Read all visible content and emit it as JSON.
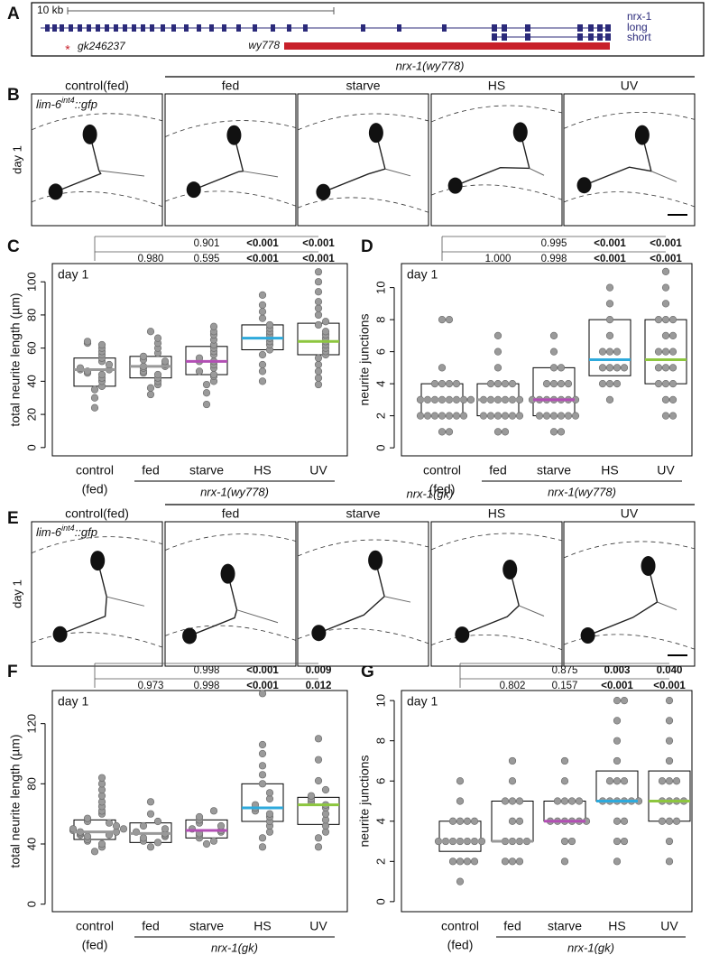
{
  "panel_labels": [
    "A",
    "B",
    "C",
    "D",
    "E",
    "F",
    "G"
  ],
  "gene_diagram": {
    "scale_label": "10 kb",
    "gene": "nrx-1",
    "isoforms": [
      "long",
      "short"
    ],
    "mutation_marker": "*",
    "alleles": [
      "gk246237",
      "wy778"
    ]
  },
  "image_rows": [
    {
      "group_label": "nrx-1(wy778)",
      "columns": [
        "control(fed)",
        "fed",
        "starve",
        "HS",
        "UV"
      ],
      "row_label": "day 1",
      "reporter": {
        "base": "lim-6",
        "superscript": "int4",
        "suffix": "::gfp"
      }
    },
    {
      "group_label": "nrx-1(gk)",
      "columns": [
        "control(fed)",
        "fed",
        "starve",
        "HS",
        "UV"
      ],
      "row_label": "day 1",
      "reporter": {
        "base": "lim-6",
        "superscript": "int4",
        "suffix": "::gfp"
      }
    }
  ],
  "chart_data": [
    {
      "type": "box",
      "title": "day 1",
      "y_label": "total neurite length (µm)",
      "categories": [
        "control",
        "fed",
        "starve",
        "HS",
        "UV"
      ],
      "category_note": "(fed)",
      "group_label": "nrx-1(wy778)",
      "ylim": [
        -5,
        111
      ],
      "yticks": [
        0,
        20,
        40,
        60,
        80,
        100
      ],
      "q1": [
        37,
        42,
        44,
        59,
        56
      ],
      "median": [
        47,
        49,
        52,
        66,
        64
      ],
      "q3": [
        54,
        55,
        61,
        74,
        75
      ],
      "median_colors": [
        "#999999",
        "#999999",
        "#b24fb4",
        "#2eaadc",
        "#8dc63f"
      ],
      "point_color": "#9a9a9a",
      "points": [
        [
          24,
          30,
          35,
          37,
          40,
          42,
          44,
          45,
          46,
          47,
          47,
          48,
          50,
          52,
          54,
          56,
          58,
          60,
          62,
          63,
          64
        ],
        [
          32,
          36,
          38,
          40,
          42,
          44,
          45,
          46,
          48,
          49,
          49,
          50,
          52,
          53,
          55,
          57,
          60,
          63,
          66,
          70
        ],
        [
          26,
          33,
          38,
          40,
          43,
          44,
          46,
          48,
          50,
          52,
          52,
          54,
          56,
          58,
          60,
          62,
          65,
          68,
          70,
          73
        ],
        [
          40,
          46,
          50,
          56,
          59,
          62,
          64,
          66,
          68,
          70,
          72,
          74,
          78,
          82,
          86,
          92
        ],
        [
          38,
          42,
          46,
          50,
          54,
          56,
          58,
          60,
          62,
          64,
          66,
          68,
          70,
          74,
          76,
          80,
          84,
          88,
          94,
          100,
          106
        ]
      ],
      "p_values": [
        {
          "labels": [
            "0.901",
            "<0.001",
            "<0.001"
          ],
          "bold": [
            false,
            true,
            true
          ]
        },
        {
          "labels": [
            "0.980",
            "0.595",
            "<0.001",
            "<0.001"
          ],
          "bold": [
            false,
            false,
            true,
            true
          ]
        }
      ]
    },
    {
      "type": "box",
      "title": "day 1",
      "y_label": "neurite junctions",
      "categories": [
        "control",
        "fed",
        "starve",
        "HS",
        "UV"
      ],
      "category_note": "(fed)",
      "group_label": "nrx-1(wy778)",
      "ylim": [
        -0.5,
        11.5
      ],
      "yticks": [
        0,
        2,
        4,
        6,
        8,
        10
      ],
      "q1": [
        2,
        2,
        2,
        4.5,
        4
      ],
      "median": [
        3,
        3,
        3,
        5.5,
        5.5
      ],
      "q3": [
        4,
        4,
        5,
        8,
        8
      ],
      "median_colors": [
        "#999999",
        "#999999",
        "#b24fb4",
        "#2eaadc",
        "#8dc63f"
      ],
      "point_color": "#9a9a9a",
      "points": [
        [
          1,
          1,
          2,
          2,
          2,
          2,
          2,
          2,
          2,
          3,
          3,
          3,
          3,
          3,
          3,
          3,
          3,
          4,
          4,
          4,
          4,
          5,
          8,
          8
        ],
        [
          1,
          1,
          2,
          2,
          2,
          2,
          2,
          2,
          3,
          3,
          3,
          3,
          3,
          3,
          4,
          4,
          4,
          4,
          5,
          6,
          7
        ],
        [
          1,
          1,
          2,
          2,
          2,
          2,
          2,
          2,
          3,
          3,
          3,
          3,
          3,
          3,
          3,
          4,
          4,
          4,
          4,
          5,
          5,
          6,
          7
        ],
        [
          3,
          4,
          4,
          4,
          5,
          5,
          5,
          5,
          6,
          6,
          6,
          7,
          8,
          9,
          10
        ],
        [
          2,
          2,
          3,
          3,
          4,
          4,
          4,
          5,
          5,
          5,
          6,
          6,
          6,
          7,
          7,
          8,
          8,
          8,
          9,
          10,
          11
        ]
      ],
      "p_values": [
        {
          "labels": [
            "0.995",
            "<0.001",
            "<0.001"
          ],
          "bold": [
            false,
            true,
            true
          ]
        },
        {
          "labels": [
            "1.000",
            "0.998",
            "<0.001",
            "<0.001"
          ],
          "bold": [
            false,
            false,
            true,
            true
          ]
        }
      ]
    },
    {
      "type": "box",
      "title": "day 1",
      "y_label": "total neurite length (µm)",
      "categories": [
        "control",
        "fed",
        "starve",
        "HS",
        "UV"
      ],
      "category_note": "(fed)",
      "group_label": "nrx-1(gk)",
      "ylim": [
        -5,
        142
      ],
      "yticks": [
        0,
        40,
        80,
        120
      ],
      "q1": [
        43,
        41,
        44,
        55,
        53
      ],
      "median": [
        48,
        47,
        49,
        64,
        66
      ],
      "q3": [
        56,
        54,
        56,
        80,
        71
      ],
      "median_colors": [
        "#999999",
        "#999999",
        "#b24fb4",
        "#2eaadc",
        "#8dc63f"
      ],
      "point_color": "#9a9a9a",
      "points": [
        [
          35,
          38,
          40,
          42,
          43,
          45,
          46,
          46,
          47,
          48,
          48,
          49,
          50,
          50,
          52,
          54,
          55,
          57,
          60,
          62,
          65,
          68,
          72,
          76,
          80,
          84
        ],
        [
          38,
          41,
          42,
          44,
          45,
          46,
          47,
          48,
          50,
          52,
          55,
          60,
          68
        ],
        [
          40,
          42,
          44,
          46,
          47,
          48,
          49,
          50,
          52,
          54,
          56,
          58,
          62
        ],
        [
          38,
          44,
          48,
          52,
          55,
          58,
          60,
          62,
          64,
          66,
          70,
          74,
          80,
          86,
          92,
          100,
          106,
          140
        ],
        [
          38,
          44,
          48,
          52,
          56,
          60,
          64,
          66,
          68,
          70,
          72,
          76,
          82,
          96,
          110
        ]
      ],
      "p_values": [
        {
          "labels": [
            "0.998",
            "<0.001",
            "0.009"
          ],
          "bold": [
            false,
            true,
            true
          ]
        },
        {
          "labels": [
            "0.973",
            "0.998",
            "<0.001",
            "0.012"
          ],
          "bold": [
            false,
            false,
            true,
            true
          ]
        }
      ]
    },
    {
      "type": "box",
      "title": "day 1",
      "y_label": "neurite junctions",
      "categories": [
        "control",
        "fed",
        "starve",
        "HS",
        "UV"
      ],
      "category_note": "(fed)",
      "group_label": "nrx-1(gk)",
      "ylim": [
        -0.5,
        10.5
      ],
      "yticks": [
        0,
        2,
        4,
        6,
        8,
        10
      ],
      "q1": [
        2.5,
        3,
        4,
        5,
        4
      ],
      "median": [
        3,
        3,
        4,
        5,
        5
      ],
      "q3": [
        4,
        5,
        5,
        6.5,
        6.5
      ],
      "median_colors": [
        "#999999",
        "#999999",
        "#b24fb4",
        "#2eaadc",
        "#8dc63f"
      ],
      "point_color": "#9a9a9a",
      "points": [
        [
          1,
          2,
          2,
          2,
          2,
          3,
          3,
          3,
          3,
          3,
          3,
          3,
          4,
          4,
          4,
          4,
          5,
          6
        ],
        [
          2,
          2,
          2,
          3,
          3,
          3,
          3,
          4,
          4,
          5,
          5,
          5,
          6,
          7
        ],
        [
          2,
          3,
          3,
          4,
          4,
          4,
          4,
          4,
          4,
          5,
          5,
          5,
          5,
          6,
          7
        ],
        [
          2,
          3,
          3,
          4,
          4,
          5,
          5,
          5,
          5,
          5,
          5,
          6,
          6,
          6,
          7,
          8,
          9,
          10,
          10
        ],
        [
          2,
          3,
          4,
          4,
          4,
          5,
          5,
          5,
          5,
          6,
          6,
          6,
          7,
          8,
          9,
          10
        ]
      ],
      "p_values": [
        {
          "labels": [
            "0.875",
            "0.003",
            "0.040"
          ],
          "bold": [
            false,
            true,
            true
          ]
        },
        {
          "labels": [
            "0.802",
            "0.157",
            "<0.001",
            "<0.001"
          ],
          "bold": [
            false,
            false,
            true,
            true
          ]
        }
      ]
    }
  ]
}
